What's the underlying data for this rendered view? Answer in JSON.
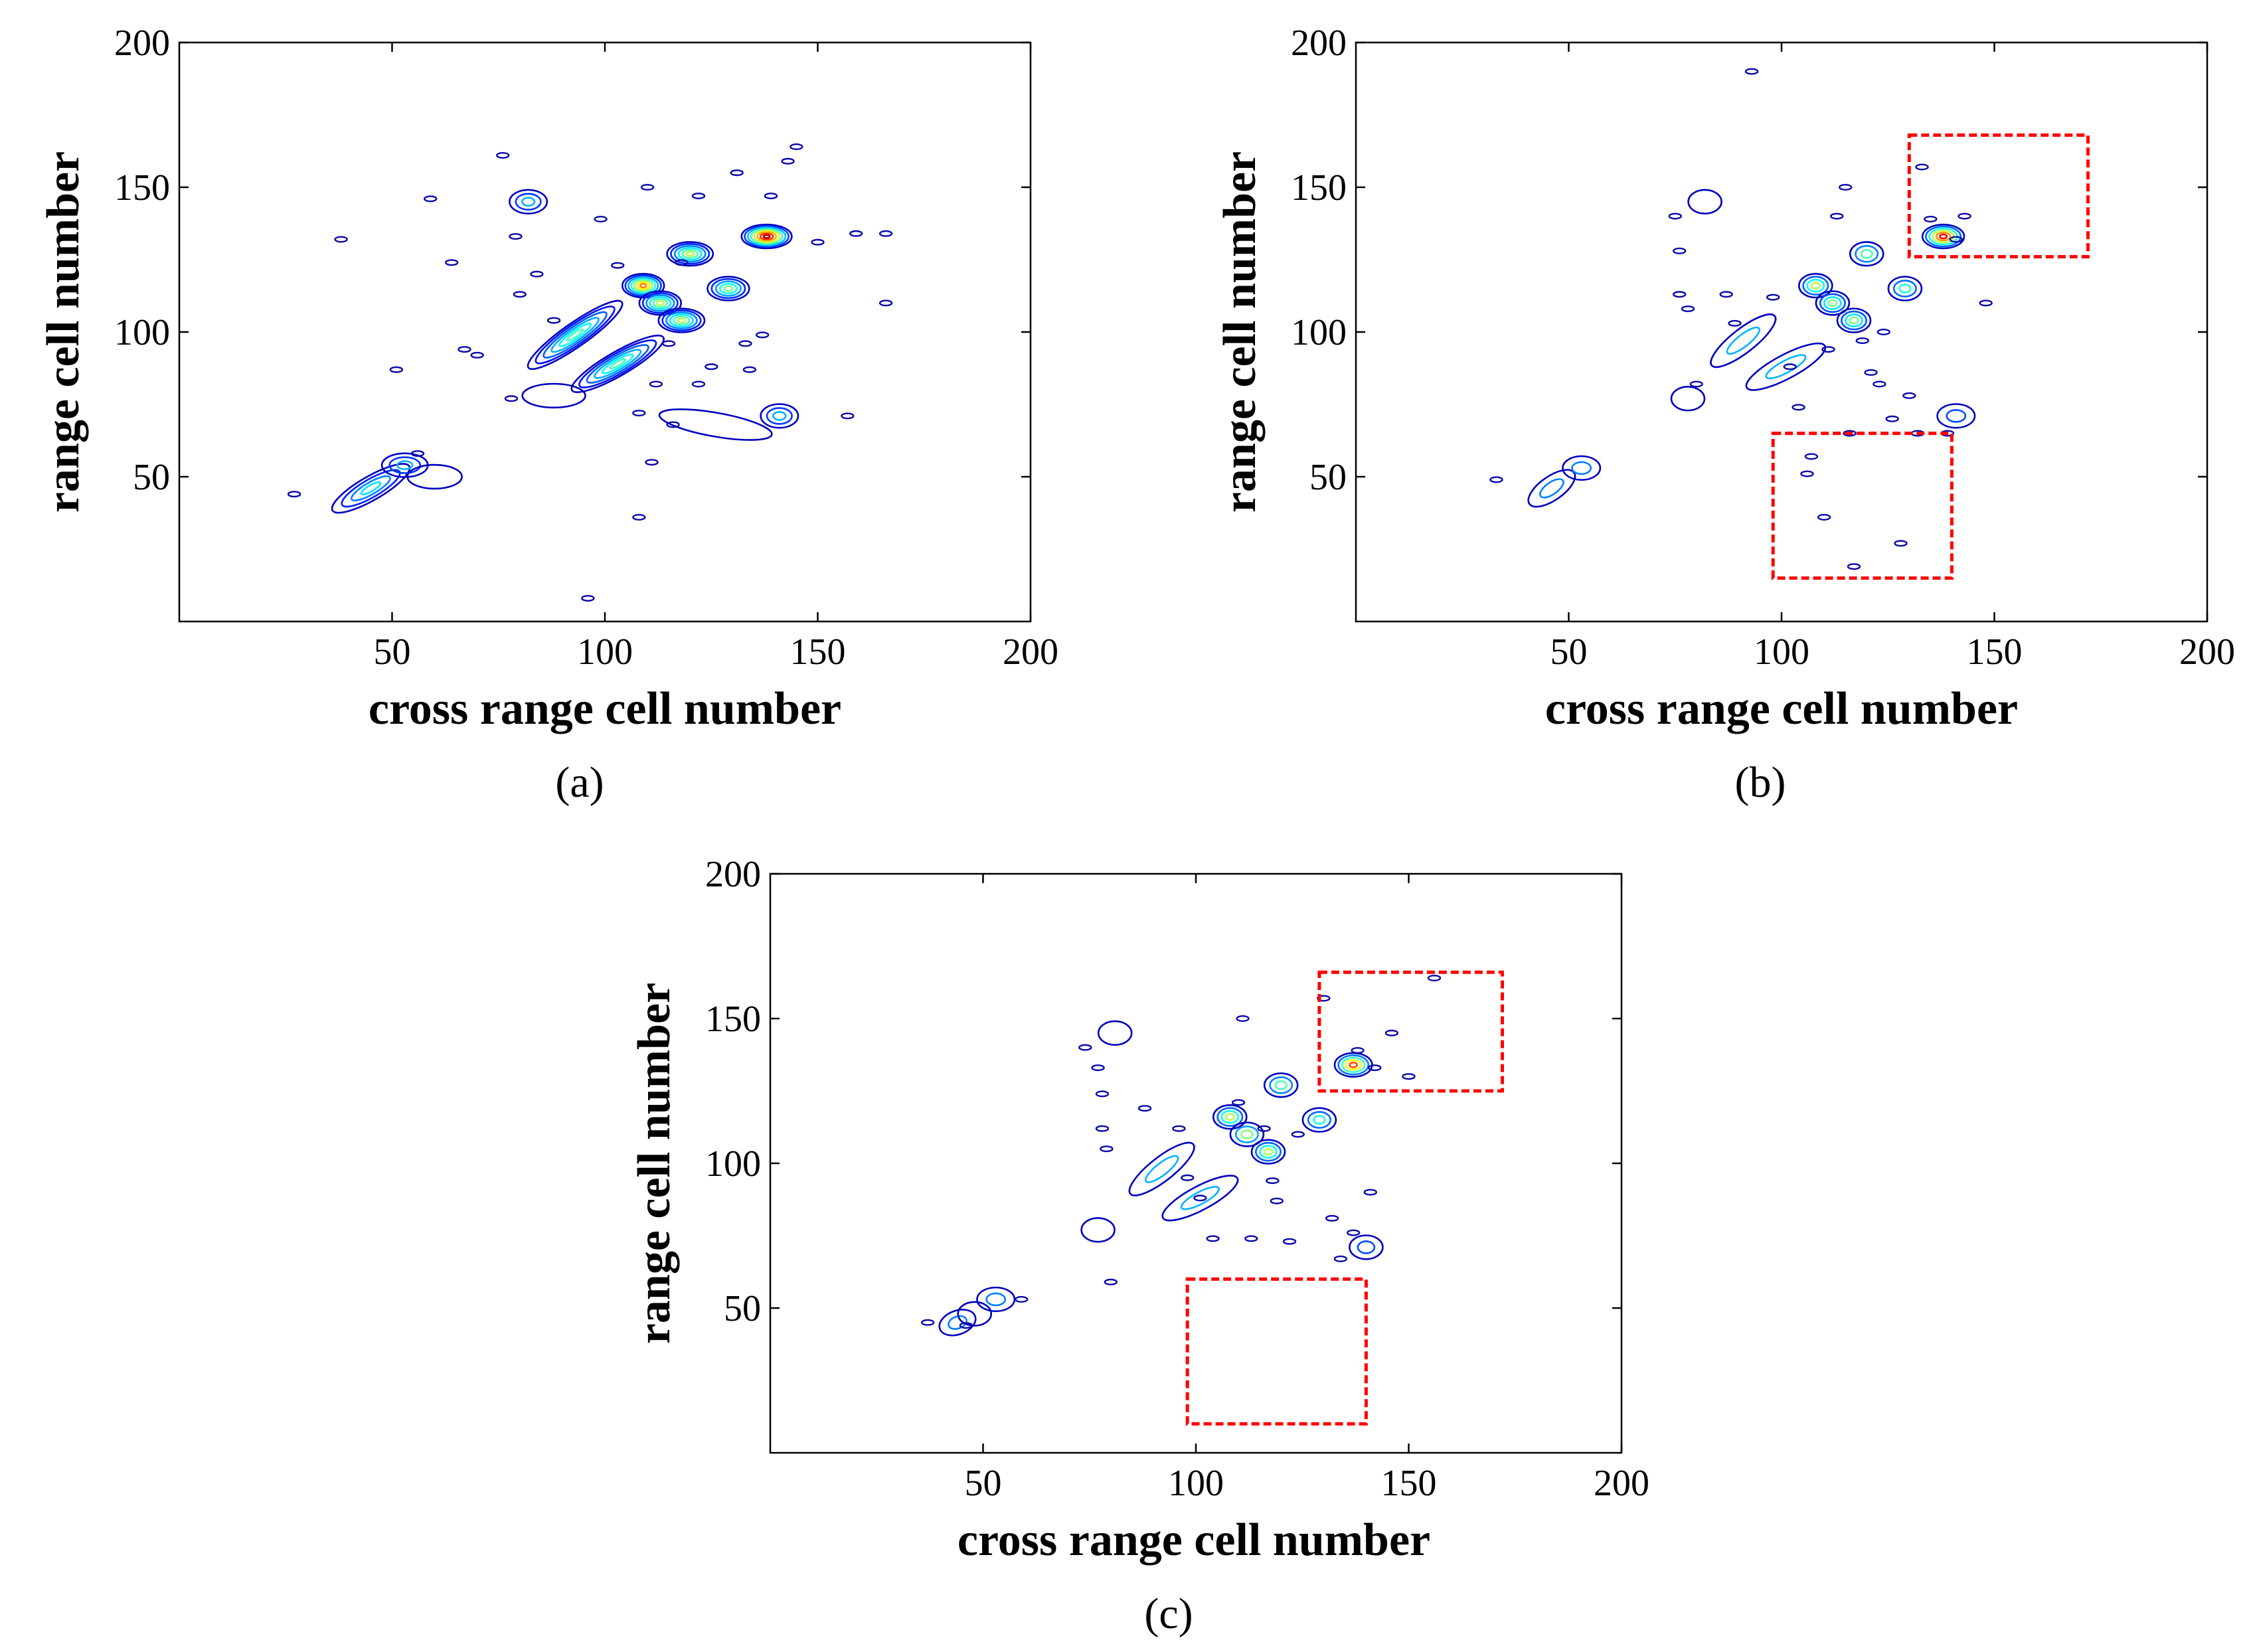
{
  "chart_data": [
    {
      "type": "contour",
      "panel_label": "a",
      "xlabel": "cross range cell number",
      "ylabel": "range cell number",
      "xlim": [
        0,
        200
      ],
      "ylim": [
        0,
        200
      ],
      "xticks": [
        50,
        100,
        150,
        200
      ],
      "yticks": [
        50,
        100,
        150,
        200
      ],
      "blobs": [
        {
          "x": 45,
          "y": 46,
          "length": 16,
          "angle": 30,
          "levels": 4,
          "peak": 0.35
        },
        {
          "x": 53,
          "y": 54,
          "length": 6,
          "angle": 0,
          "levels": 3,
          "peak": 0.3
        },
        {
          "x": 60,
          "y": 50,
          "length": 8,
          "angle": 0,
          "levels": 1,
          "peak": 0.1
        },
        {
          "x": 93,
          "y": 99,
          "length": 22,
          "angle": 35,
          "levels": 6,
          "peak": 0.45
        },
        {
          "x": 103,
          "y": 89,
          "length": 20,
          "angle": 30,
          "levels": 6,
          "peak": 0.45
        },
        {
          "x": 109,
          "y": 116,
          "length": 5,
          "angle": 0,
          "levels": 7,
          "peak": 0.75
        },
        {
          "x": 113,
          "y": 110,
          "length": 5,
          "angle": 0,
          "levels": 6,
          "peak": 0.55
        },
        {
          "x": 118,
          "y": 104,
          "length": 6,
          "angle": 0,
          "levels": 6,
          "peak": 0.55
        },
        {
          "x": 120,
          "y": 127,
          "length": 6,
          "angle": 0,
          "levels": 6,
          "peak": 0.55
        },
        {
          "x": 129,
          "y": 115,
          "length": 5,
          "angle": 0,
          "levels": 5,
          "peak": 0.5
        },
        {
          "x": 138,
          "y": 133,
          "length": 7,
          "angle": 0,
          "levels": 8,
          "peak": 0.95
        },
        {
          "x": 82,
          "y": 145,
          "length": 4,
          "angle": 0,
          "levels": 3,
          "peak": 0.3
        },
        {
          "x": 141,
          "y": 71,
          "length": 4,
          "angle": 0,
          "levels": 3,
          "peak": 0.3
        },
        {
          "x": 126,
          "y": 68,
          "length": 22,
          "angle": -10,
          "levels": 1,
          "peak": 0.1
        },
        {
          "x": 88,
          "y": 78,
          "length": 10,
          "angle": 0,
          "levels": 1,
          "peak": 0.1
        }
      ],
      "specks": [
        [
          27,
          44
        ],
        [
          38,
          132
        ],
        [
          51,
          87
        ],
        [
          59,
          146
        ],
        [
          64,
          124
        ],
        [
          76,
          161
        ],
        [
          78,
          77
        ],
        [
          79,
          133
        ],
        [
          80,
          113
        ],
        [
          84,
          120
        ],
        [
          88,
          104
        ],
        [
          70,
          92
        ],
        [
          56,
          58
        ],
        [
          96,
          8
        ],
        [
          108,
          36
        ],
        [
          110,
          150
        ],
        [
          111,
          55
        ],
        [
          112,
          82
        ],
        [
          115,
          96
        ],
        [
          122,
          147
        ],
        [
          125,
          88
        ],
        [
          131,
          155
        ],
        [
          133,
          96
        ],
        [
          137,
          99
        ],
        [
          139,
          147
        ],
        [
          143,
          159
        ],
        [
          145,
          164
        ],
        [
          150,
          131
        ],
        [
          159,
          134
        ],
        [
          157,
          71
        ],
        [
          166,
          134
        ],
        [
          166,
          110
        ],
        [
          67,
          94
        ],
        [
          99,
          139
        ],
        [
          118,
          124
        ],
        [
          103,
          123
        ],
        [
          122,
          82
        ],
        [
          108,
          72
        ],
        [
          116,
          68
        ],
        [
          134,
          87
        ]
      ],
      "highlight_boxes": []
    },
    {
      "type": "contour",
      "panel_label": "b",
      "xlabel": "cross range cell number",
      "ylabel": "range cell number",
      "xlim": [
        0,
        200
      ],
      "ylim": [
        0,
        200
      ],
      "xticks": [
        50,
        100,
        150,
        200
      ],
      "yticks": [
        50,
        100,
        150,
        200
      ],
      "blobs": [
        {
          "x": 46,
          "y": 46,
          "length": 8,
          "angle": 35,
          "levels": 2,
          "peak": 0.25
        },
        {
          "x": 53,
          "y": 53,
          "length": 4,
          "angle": 0,
          "levels": 2,
          "peak": 0.25
        },
        {
          "x": 91,
          "y": 97,
          "length": 14,
          "angle": 38,
          "levels": 2,
          "peak": 0.3
        },
        {
          "x": 101,
          "y": 88,
          "length": 16,
          "angle": 28,
          "levels": 2,
          "peak": 0.3
        },
        {
          "x": 108,
          "y": 116,
          "length": 3,
          "angle": 0,
          "levels": 4,
          "peak": 0.55
        },
        {
          "x": 112,
          "y": 110,
          "length": 3,
          "angle": 0,
          "levels": 4,
          "peak": 0.5
        },
        {
          "x": 117,
          "y": 104,
          "length": 3,
          "angle": 0,
          "levels": 4,
          "peak": 0.5
        },
        {
          "x": 120,
          "y": 127,
          "length": 3,
          "angle": 0,
          "levels": 3,
          "peak": 0.45
        },
        {
          "x": 129,
          "y": 115,
          "length": 3,
          "angle": 0,
          "levels": 3,
          "peak": 0.4
        },
        {
          "x": 138,
          "y": 133,
          "length": 5,
          "angle": 0,
          "levels": 6,
          "peak": 0.9
        },
        {
          "x": 82,
          "y": 145,
          "length": 3,
          "angle": 0,
          "levels": 1,
          "peak": 0.2
        },
        {
          "x": 141,
          "y": 71,
          "length": 4,
          "angle": 0,
          "levels": 2,
          "peak": 0.2
        },
        {
          "x": 78,
          "y": 77,
          "length": 3,
          "angle": 0,
          "levels": 1,
          "peak": 0.2
        }
      ],
      "specks": [
        [
          33,
          49
        ],
        [
          75,
          140
        ],
        [
          76,
          128
        ],
        [
          76,
          113
        ],
        [
          78,
          108
        ],
        [
          80,
          82
        ],
        [
          87,
          113
        ],
        [
          89,
          103
        ],
        [
          93,
          190
        ],
        [
          98,
          112
        ],
        [
          102,
          88
        ],
        [
          104,
          74
        ],
        [
          106,
          51
        ],
        [
          107,
          57
        ],
        [
          110,
          36
        ],
        [
          111,
          94
        ],
        [
          113,
          140
        ],
        [
          115,
          150
        ],
        [
          116,
          65
        ],
        [
          117,
          19
        ],
        [
          119,
          97
        ],
        [
          121,
          86
        ],
        [
          123,
          82
        ],
        [
          126,
          70
        ],
        [
          128,
          27
        ],
        [
          130,
          78
        ],
        [
          133,
          157
        ],
        [
          135,
          139
        ],
        [
          141,
          132
        ],
        [
          143,
          140
        ],
        [
          139,
          65
        ],
        [
          132,
          65
        ],
        [
          148,
          110
        ],
        [
          124,
          100
        ]
      ],
      "highlight_boxes": [
        {
          "x0": 130,
          "x1": 172,
          "y0": 126,
          "y1": 168
        },
        {
          "x0": 98,
          "x1": 140,
          "y0": 15,
          "y1": 65
        }
      ]
    },
    {
      "type": "contour",
      "panel_label": "c",
      "xlabel": "cross range cell number",
      "ylabel": "range cell number",
      "xlim": [
        0,
        200
      ],
      "ylim": [
        0,
        200
      ],
      "xticks": [
        50,
        100,
        150,
        200
      ],
      "yticks": [
        50,
        100,
        150,
        200
      ],
      "blobs": [
        {
          "x": 44,
          "y": 45,
          "length": 4,
          "angle": 20,
          "levels": 2,
          "peak": 0.25
        },
        {
          "x": 48,
          "y": 48,
          "length": 3,
          "angle": 0,
          "levels": 1,
          "peak": 0.2
        },
        {
          "x": 53,
          "y": 53,
          "length": 4,
          "angle": 0,
          "levels": 2,
          "peak": 0.25
        },
        {
          "x": 92,
          "y": 98,
          "length": 14,
          "angle": 38,
          "levels": 2,
          "peak": 0.3
        },
        {
          "x": 101,
          "y": 88,
          "length": 15,
          "angle": 28,
          "levels": 2,
          "peak": 0.3
        },
        {
          "x": 108,
          "y": 116,
          "length": 3,
          "angle": 0,
          "levels": 4,
          "peak": 0.55
        },
        {
          "x": 112,
          "y": 110,
          "length": 3,
          "angle": 0,
          "levels": 3,
          "peak": 0.5
        },
        {
          "x": 117,
          "y": 104,
          "length": 3,
          "angle": 0,
          "levels": 4,
          "peak": 0.55
        },
        {
          "x": 120,
          "y": 127,
          "length": 3,
          "angle": 0,
          "levels": 3,
          "peak": 0.45
        },
        {
          "x": 129,
          "y": 115,
          "length": 3,
          "angle": 0,
          "levels": 3,
          "peak": 0.4
        },
        {
          "x": 137,
          "y": 134,
          "length": 4,
          "angle": 0,
          "levels": 5,
          "peak": 0.8
        },
        {
          "x": 81,
          "y": 145,
          "length": 3,
          "angle": 0,
          "levels": 1,
          "peak": 0.2
        },
        {
          "x": 140,
          "y": 71,
          "length": 3,
          "angle": 0,
          "levels": 2,
          "peak": 0.2
        },
        {
          "x": 77,
          "y": 77,
          "length": 3,
          "angle": 0,
          "levels": 1,
          "peak": 0.2
        }
      ],
      "specks": [
        [
          37,
          45
        ],
        [
          46,
          44
        ],
        [
          59,
          53
        ],
        [
          74,
          140
        ],
        [
          77,
          133
        ],
        [
          78,
          124
        ],
        [
          78,
          112
        ],
        [
          79,
          105
        ],
        [
          80,
          59
        ],
        [
          88,
          119
        ],
        [
          96,
          112
        ],
        [
          98,
          95
        ],
        [
          101,
          88
        ],
        [
          104,
          74
        ],
        [
          110,
          121
        ],
        [
          111,
          150
        ],
        [
          113,
          74
        ],
        [
          116,
          112
        ],
        [
          118,
          94
        ],
        [
          119,
          87
        ],
        [
          122,
          73
        ],
        [
          130,
          157
        ],
        [
          132,
          81
        ],
        [
          134,
          67
        ],
        [
          138,
          139
        ],
        [
          141,
          90
        ],
        [
          142,
          133
        ],
        [
          146,
          145
        ],
        [
          150,
          130
        ],
        [
          156,
          164
        ],
        [
          124,
          110
        ],
        [
          137,
          76
        ]
      ],
      "highlight_boxes": [
        {
          "x0": 129,
          "x1": 172,
          "y0": 125,
          "y1": 166
        },
        {
          "x0": 98,
          "x1": 140,
          "y0": 10,
          "y1": 60
        }
      ]
    }
  ]
}
